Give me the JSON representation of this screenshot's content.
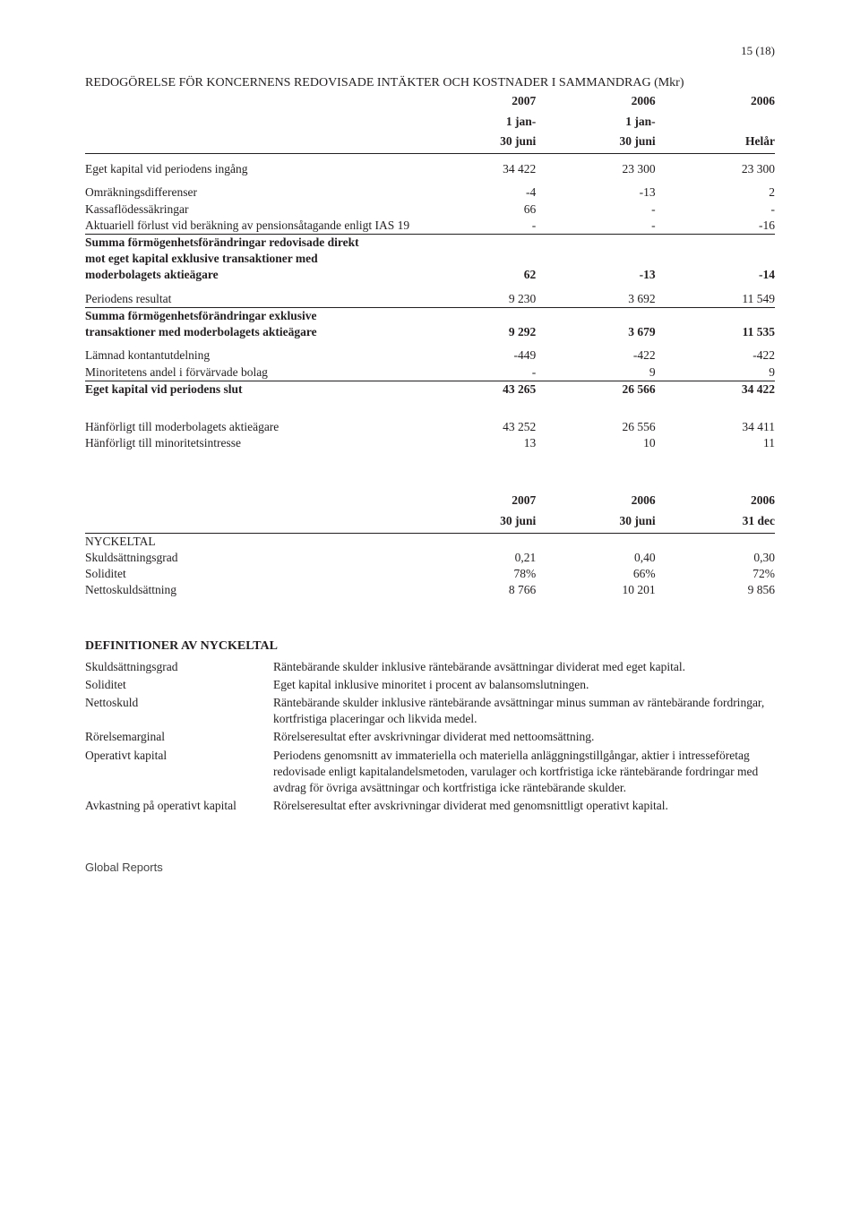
{
  "page_number": "15 (18)",
  "title": "REDOGÖRELSE FÖR KONCERNENS REDOVISADE INTÄKTER OCH KOSTNADER I SAMMANDRAG (Mkr)",
  "col_headers": {
    "c1a": "2007",
    "c1b": "1 jan-",
    "c1c": "30 juni",
    "c2a": "2006",
    "c2b": "1 jan-",
    "c2c": "30 juni",
    "c3a": "2006",
    "c3b": "",
    "c3c": "Helår"
  },
  "rows": [
    {
      "label": "Eget kapital vid periodens ingång",
      "v": [
        "34 422",
        "23 300",
        "23 300"
      ],
      "spacer_after": true
    },
    {
      "label": "Omräkningsdifferenser",
      "v": [
        "-4",
        "-13",
        "2"
      ]
    },
    {
      "label": "Kassaflödessäkringar",
      "v": [
        "66",
        "-",
        "-"
      ]
    },
    {
      "label": "Aktuariell förlust vid beräkning av pensionsåtagande enligt IAS 19",
      "v": [
        "-",
        "-",
        "-16"
      ]
    },
    {
      "label_lines": [
        "Summa förmögenhetsförändringar redovisade direkt",
        "mot eget kapital exklusive transaktioner med",
        "moderbolagets aktieägare"
      ],
      "v": [
        "62",
        "-13",
        "-14"
      ],
      "bold": true,
      "rule": true,
      "spacer_after": true
    },
    {
      "label": "Periodens resultat",
      "v": [
        "9 230",
        "3 692",
        "11 549"
      ]
    },
    {
      "label_lines": [
        "Summa förmögenhetsförändringar exklusive",
        "transaktioner med moderbolagets aktieägare"
      ],
      "v": [
        "9 292",
        "3 679",
        "11 535"
      ],
      "bold": true,
      "rule": true,
      "spacer_after": true
    },
    {
      "label": "Lämnad kontantutdelning",
      "v": [
        "-449",
        "-422",
        "-422"
      ]
    },
    {
      "label": "Minoritetens andel i förvärvade bolag",
      "v": [
        "-",
        "9",
        "9"
      ]
    },
    {
      "label": "Eget kapital vid periodens slut",
      "v": [
        "43 265",
        "26 566",
        "34 422"
      ],
      "bold": true,
      "rule": true,
      "spacer_after_lg": true
    },
    {
      "label": "Hänförligt till moderbolagets aktieägare",
      "v": [
        "43 252",
        "26 556",
        "34 411"
      ]
    },
    {
      "label": "Hänförligt till minoritetsintresse",
      "v": [
        "13",
        "10",
        "11"
      ]
    }
  ],
  "nyckeltal_headers": {
    "c1a": "2007",
    "c1b": "30 juni",
    "c2a": "2006",
    "c2b": "30 juni",
    "c3a": "2006",
    "c3b": "31 dec"
  },
  "nyckeltal_label": "NYCKELTAL",
  "nyckeltal_rows": [
    {
      "label": "Skuldsättningsgrad",
      "v": [
        "0,21",
        "0,40",
        "0,30"
      ]
    },
    {
      "label": "Soliditet",
      "v": [
        "78%",
        "66%",
        "72%"
      ]
    },
    {
      "label": "Nettoskuldsättning",
      "v": [
        "8 766",
        "10 201",
        "9 856"
      ]
    }
  ],
  "definitions_title": "DEFINITIONER AV NYCKELTAL",
  "definitions": [
    {
      "term": "Skuldsättningsgrad",
      "def": "Räntebärande skulder inklusive räntebärande avsättningar dividerat med eget kapital."
    },
    {
      "term": "Soliditet",
      "def": "Eget kapital inklusive minoritet i procent av balansomslutningen."
    },
    {
      "term": "Nettoskuld",
      "def": "Räntebärande skulder inklusive räntebärande avsättningar minus summan av räntebärande fordringar, kortfristiga placeringar och likvida medel."
    },
    {
      "term": "Rörelsemarginal",
      "def": "Rörelseresultat efter avskrivningar dividerat med nettoomsättning."
    },
    {
      "term": "Operativt kapital",
      "def": "Periodens genomsnitt av immateriella och materiella anläggningstillgångar, aktier i intresseföretag redovisade enligt kapitalandelsmetoden, varulager och kortfristiga icke räntebärande fordringar med avdrag för övriga avsättningar och kortfristiga icke räntebärande skulder."
    },
    {
      "term": "Avkastning på operativt kapital",
      "def": "Rörelseresultat efter avskrivningar dividerat med genomsnittligt operativt kapital."
    }
  ],
  "footer": "Global Reports"
}
